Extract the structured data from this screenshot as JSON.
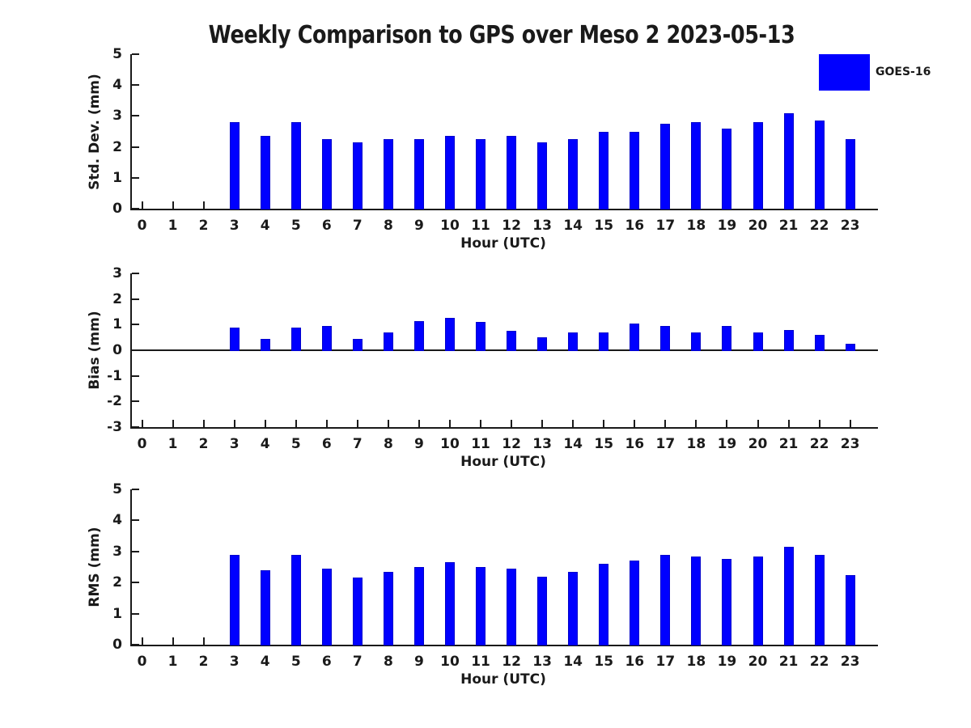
{
  "title": "Weekly Comparison to GPS over Meso 2 2023-05-13",
  "legend": {
    "label": "GOES-16",
    "swatch_color": "#0000ff",
    "position": "top-right"
  },
  "colors": {
    "bar_fill": "#0000ff",
    "bar_edge": "#0000cc",
    "axis": "#1a1a1a",
    "text": "#1a1a1a",
    "background": "#ffffff"
  },
  "chart_data": [
    {
      "type": "bar",
      "name": "std-dev",
      "title": "",
      "xlabel": "Hour (UTC)",
      "ylabel": "Std. Dev. (mm)",
      "ylim": [
        0,
        5
      ],
      "yticks": [
        0,
        1,
        2,
        3,
        4,
        5
      ],
      "grid": false,
      "legend_position": "top-right",
      "categories": [
        "0",
        "1",
        "2",
        "3",
        "4",
        "5",
        "6",
        "7",
        "8",
        "9",
        "10",
        "11",
        "12",
        "13",
        "14",
        "15",
        "16",
        "17",
        "18",
        "19",
        "20",
        "21",
        "22",
        "23"
      ],
      "series": [
        {
          "name": "GOES-16",
          "values": [
            null,
            null,
            null,
            2.8,
            2.35,
            2.8,
            2.25,
            2.15,
            2.25,
            2.25,
            2.35,
            2.25,
            2.35,
            2.15,
            2.25,
            2.5,
            2.5,
            2.75,
            2.8,
            2.6,
            2.8,
            3.1,
            2.85,
            2.25
          ]
        }
      ]
    },
    {
      "type": "bar",
      "name": "bias",
      "title": "",
      "xlabel": "Hour (UTC)",
      "ylabel": "Bias (mm)",
      "ylim": [
        -3,
        3
      ],
      "yticks": [
        -3,
        -2,
        -1,
        0,
        1,
        2,
        3
      ],
      "grid": false,
      "categories": [
        "0",
        "1",
        "2",
        "3",
        "4",
        "5",
        "6",
        "7",
        "8",
        "9",
        "10",
        "11",
        "12",
        "13",
        "14",
        "15",
        "16",
        "17",
        "18",
        "19",
        "20",
        "21",
        "22",
        "23"
      ],
      "series": [
        {
          "name": "GOES-16",
          "values": [
            null,
            null,
            null,
            0.9,
            0.45,
            0.9,
            0.95,
            0.45,
            0.7,
            1.15,
            1.25,
            1.1,
            0.75,
            0.5,
            0.7,
            0.7,
            1.05,
            0.95,
            0.7,
            0.95,
            0.7,
            0.8,
            0.6,
            0.25
          ]
        }
      ]
    },
    {
      "type": "bar",
      "name": "rms",
      "title": "",
      "xlabel": "Hour (UTC)",
      "ylabel": "RMS (mm)",
      "ylim": [
        0,
        5
      ],
      "yticks": [
        0,
        1,
        2,
        3,
        4,
        5
      ],
      "grid": false,
      "categories": [
        "0",
        "1",
        "2",
        "3",
        "4",
        "5",
        "6",
        "7",
        "8",
        "9",
        "10",
        "11",
        "12",
        "13",
        "14",
        "15",
        "16",
        "17",
        "18",
        "19",
        "20",
        "21",
        "22",
        "23"
      ],
      "series": [
        {
          "name": "GOES-16",
          "values": [
            null,
            null,
            null,
            2.9,
            2.4,
            2.9,
            2.45,
            2.15,
            2.35,
            2.5,
            2.65,
            2.5,
            2.45,
            2.2,
            2.35,
            2.6,
            2.7,
            2.9,
            2.85,
            2.75,
            2.85,
            3.15,
            2.9,
            2.25
          ]
        }
      ]
    }
  ]
}
